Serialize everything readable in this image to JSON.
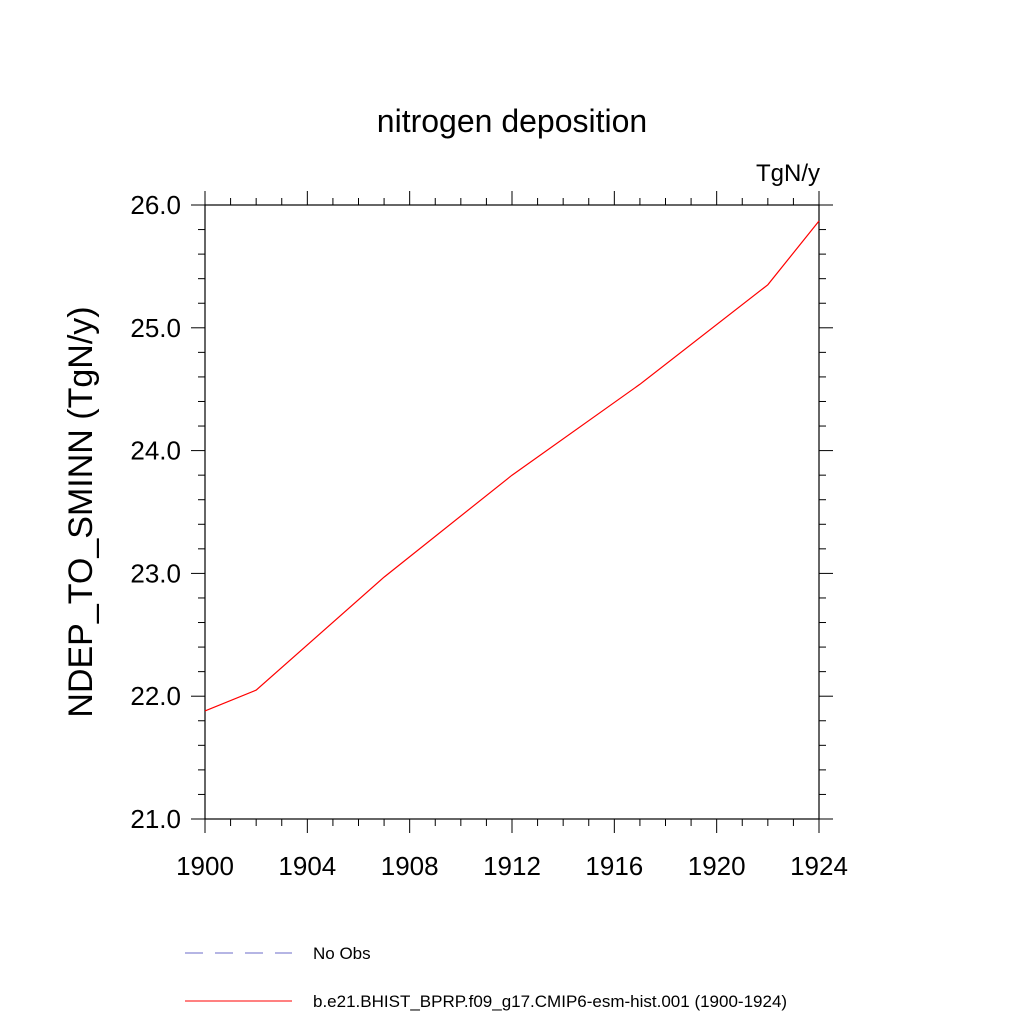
{
  "chart_data": {
    "type": "line",
    "title": "nitrogen deposition",
    "units": "TgN/y",
    "xlabel": "",
    "ylabel": "NDEP_TO_SMINN  (TgN/y)",
    "xlim": [
      1900,
      1924
    ],
    "ylim": [
      21.0,
      26.0
    ],
    "x_ticks": [
      1900,
      1904,
      1908,
      1912,
      1916,
      1920,
      1924
    ],
    "x_tick_labels": [
      "1900",
      "1904",
      "1908",
      "1912",
      "1916",
      "1920",
      "1924"
    ],
    "y_ticks": [
      21.0,
      22.0,
      23.0,
      24.0,
      25.0,
      26.0
    ],
    "y_tick_labels": [
      "21.0",
      "22.0",
      "23.0",
      "24.0",
      "25.0",
      "26.0"
    ],
    "grid": false,
    "series": [
      {
        "name": "b.e21.BHIST_BPRP.f09_g17.CMIP6-esm-hist.001 (1900-1924)",
        "color": "#ff0000",
        "dash": "solid",
        "x": [
          1900,
          1902,
          1907,
          1912,
          1917,
          1922,
          1924
        ],
        "values": [
          21.88,
          22.05,
          22.97,
          23.8,
          24.54,
          25.35,
          25.87
        ]
      }
    ],
    "legend": [
      {
        "label": "No Obs",
        "color": "#6b6bc8",
        "dash": "dashed"
      },
      {
        "label": "b.e21.BHIST_BPRP.f09_g17.CMIP6-esm-hist.001 (1900-1924)",
        "color": "#ff0000",
        "dash": "solid"
      }
    ]
  }
}
